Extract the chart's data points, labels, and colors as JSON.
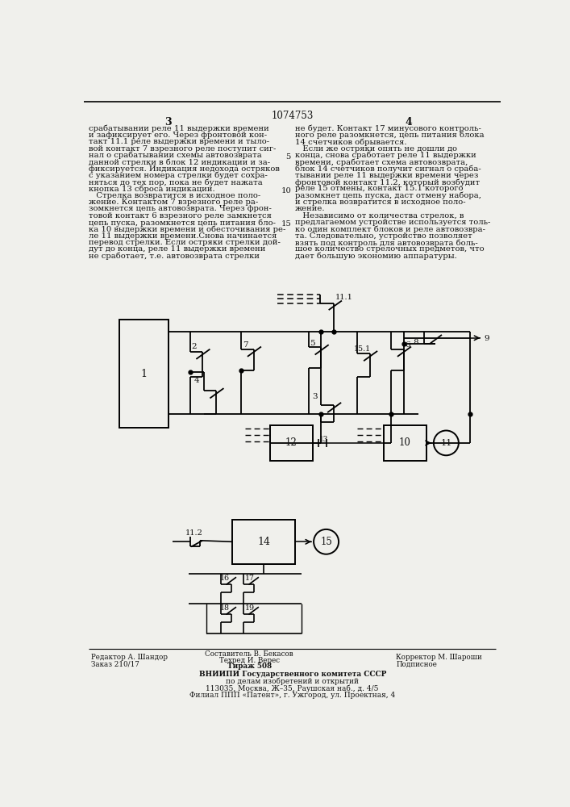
{
  "page_title": "1074753",
  "col_left_num": "3",
  "col_right_num": "4",
  "bg_color": "#f0f0ec",
  "text_color": "#1a1a1a",
  "left_column_text": [
    "срабатывании реле 11 выдержки времени",
    "и зафиксирует его. Через фронтовой кон-",
    "такт 11.1 реле выдержки времени и тыло-",
    "вой контакт 7 взрезного реле поступит сиг-",
    "нал о срабатывании схемы автовозврата",
    "данной стрелки в блок 12 индикации и за-",
    "фиксируется. Индикация недохода остряков",
    "с указанием номера стрелки будет сохра-",
    "няться до тех пор, пока не будет нажата",
    "кнопка 13 сброса индикации.",
    "   Стрелка возвратится в исходное поло-",
    "жение. Контактом 7 взрезного реле ра-",
    "зомкнется цепь автовозврата. Через фрон-",
    "товой контакт 6 взрезного реле замкнется",
    "цепь пуска, разомкнется цепь питания бло-",
    "ка 10 выдержки времени и обесточивания ре-",
    "ле 11 выдержки времени.Снова начинается",
    "перевод стрелки. Если остряки стрелки дой-",
    "дут до конца, реле 11 выдержки времени",
    "не сработает, т.е. автовозврата стрелки"
  ],
  "right_column_text": [
    "не будет. Контакт 17 минусового контроль-",
    "ного реле разомкнется, цепь питания блока",
    "14 счетчиков обрывается.",
    "   Если же остряки опять не дошли до",
    "конца, снова сработает реле 11 выдержки",
    "времени, сработает схема автовозврата,",
    "блок 14 счетчиков получит сигнал о сраба-",
    "тывании реле 11 выдержки времени через",
    "фронтовой контакт 11.2, который возбудит",
    "реле 15 отмены, контакт 15.1 которого",
    "разомкнет цепь пуска, даст отмену набора,",
    "и стрелка возвратится в исходное поло-",
    "жение.",
    "   Независимо от количества стрелок, в",
    "предлагаемом устройстве используется толь-",
    "ко один комплект блоков и реле автовозвра-",
    "та. Следовательно, устройство позволяет",
    "взять под контроль для автовозврата боль-",
    "шое количество стрелочных предметов, что",
    "дает большую экономию аппаратуры."
  ],
  "footer_left1": "Редактор А. Шандор",
  "footer_left2": "Заказ 210/17",
  "footer_center1": "Составитель В. Бекасов",
  "footer_center2": "Техред И. Верес",
  "footer_center3": "Тираж 508",
  "footer_right1": "Корректор М. Шароши",
  "footer_right2": "Подписное",
  "footer_inst1": "ВНИИПИ Государственного комитета СССР",
  "footer_inst2": "по делам изобретений и открытий",
  "footer_inst3": "113035, Москва, Ж–35, Раушская наб., д. 4/5",
  "footer_inst4": "Филиал ППП «Патент», г. Ужгород, ул. Проектная, 4"
}
